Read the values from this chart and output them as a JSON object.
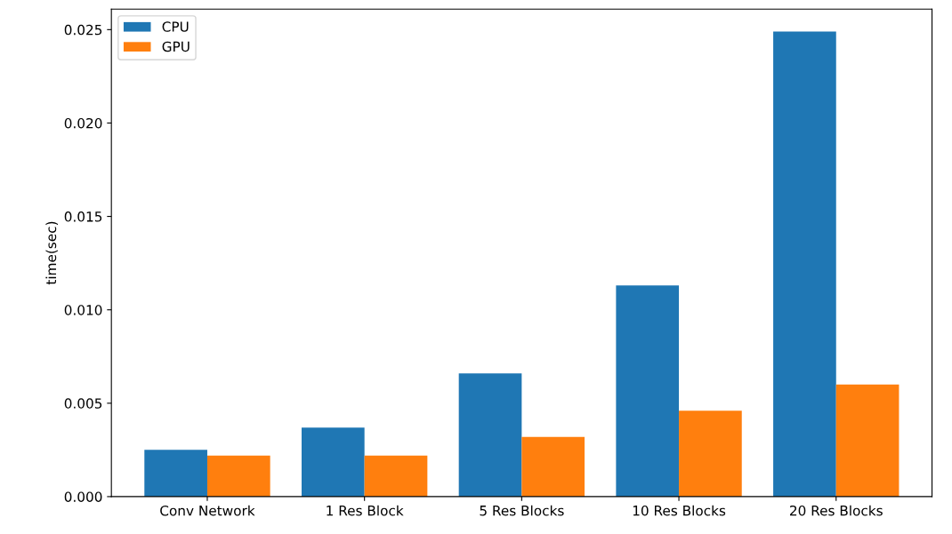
{
  "chart_data": {
    "type": "bar",
    "ylabel": "time(sec)",
    "categories": [
      "Conv Network",
      "1 Res Block",
      "5 Res Blocks",
      "10 Res Blocks",
      "20 Res Blocks"
    ],
    "series": [
      {
        "name": "CPU",
        "color": "#1f77b4",
        "values": [
          0.0025,
          0.0037,
          0.0066,
          0.0113,
          0.0249
        ]
      },
      {
        "name": "GPU",
        "color": "#ff7f0e",
        "values": [
          0.0022,
          0.0022,
          0.0032,
          0.0046,
          0.006
        ]
      }
    ],
    "ylim": [
      0,
      0.0261
    ],
    "yticks": [
      {
        "value": 0,
        "label": "0.000"
      },
      {
        "value": 0.005,
        "label": "0.005"
      },
      {
        "value": 0.01,
        "label": "0.010"
      },
      {
        "value": 0.015,
        "label": "0.015"
      },
      {
        "value": 0.02,
        "label": "0.020"
      },
      {
        "value": 0.025,
        "label": "0.025"
      }
    ],
    "legend": "top left",
    "grid": false
  }
}
